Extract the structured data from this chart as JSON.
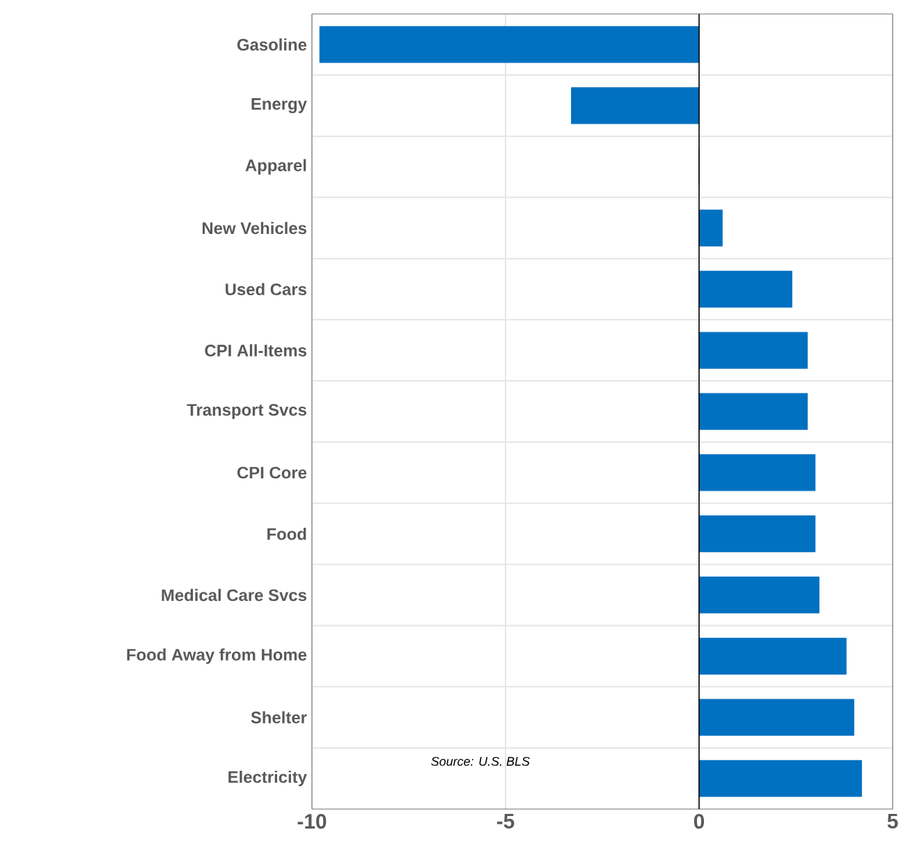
{
  "chart_data": {
    "type": "bar",
    "orientation": "horizontal",
    "categories": [
      "Gasoline",
      "Energy",
      "Apparel",
      "New Vehicles",
      "Used Cars",
      "CPI All-Items",
      "Transport Svcs",
      "CPI Core",
      "Food",
      "Medical Care Svcs",
      "Food Away from Home",
      "Shelter",
      "Electricity"
    ],
    "values": [
      -9.8,
      -3.3,
      0,
      0.6,
      2.4,
      2.8,
      2.8,
      3.0,
      3.0,
      3.1,
      3.8,
      4.0,
      4.2
    ],
    "color": "#0070c0",
    "xlim": [
      -10,
      5
    ],
    "xticks": [
      -10,
      -5,
      0,
      5
    ],
    "grid": true,
    "annotations": [
      "Source: U.S. BLS"
    ]
  }
}
